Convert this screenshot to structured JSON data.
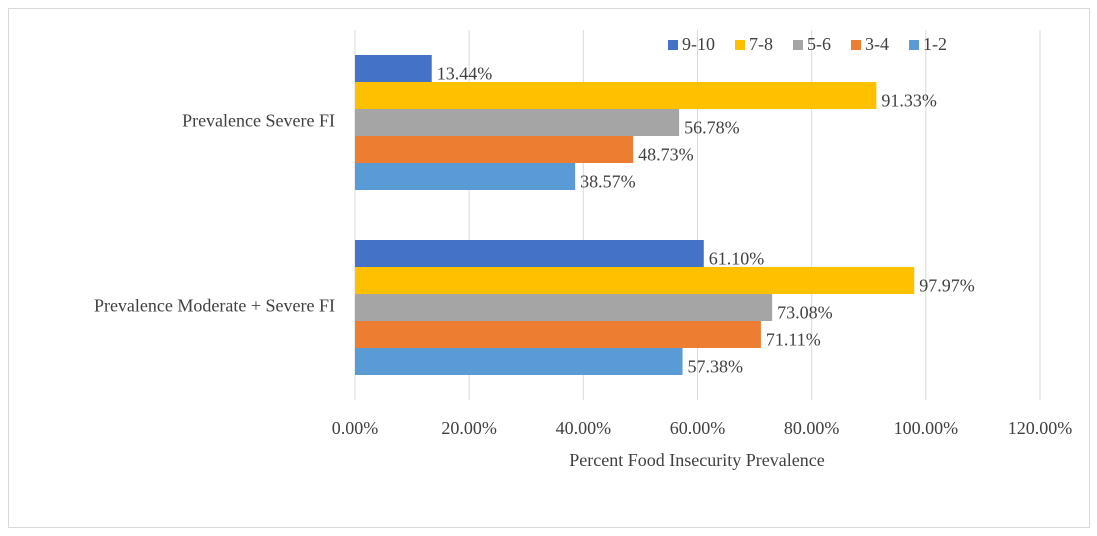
{
  "chart_data": {
    "type": "bar",
    "orientation": "horizontal",
    "x_label": "Percent Food Insecurity Prevalence",
    "categories": [
      "Prevalence Severe FI",
      "Prevalence Moderate + Severe FI"
    ],
    "series": [
      {
        "name": "9-10",
        "color": "#4472c4",
        "values": [
          13.44,
          61.1
        ],
        "value_labels": [
          "13.44%",
          "61.10%"
        ]
      },
      {
        "name": "7-8",
        "color": "#ffc000",
        "values": [
          91.33,
          97.97
        ],
        "value_labels": [
          "91.33%",
          "97.97%"
        ]
      },
      {
        "name": "5-6",
        "color": "#a5a5a5",
        "values": [
          56.78,
          73.08
        ],
        "value_labels": [
          "56.78%",
          "73.08%"
        ]
      },
      {
        "name": "3-4",
        "color": "#ed7d31",
        "values": [
          48.73,
          71.11
        ],
        "value_labels": [
          "48.73%",
          "71.11%"
        ]
      },
      {
        "name": "1-2",
        "color": "#5b9bd5",
        "values": [
          38.57,
          57.38
        ],
        "value_labels": [
          "38.57%",
          "57.38%"
        ]
      }
    ],
    "xlim": [
      0,
      120
    ],
    "xticks": [
      {
        "value": 0,
        "label": "0.00%"
      },
      {
        "value": 20,
        "label": "20.00%"
      },
      {
        "value": 40,
        "label": "40.00%"
      },
      {
        "value": 60,
        "label": "60.00%"
      },
      {
        "value": 80,
        "label": "80.00%"
      },
      {
        "value": 100,
        "label": "100.00%"
      },
      {
        "value": 120,
        "label": "120.00%"
      }
    ],
    "grid": true,
    "legend": "top-right"
  }
}
